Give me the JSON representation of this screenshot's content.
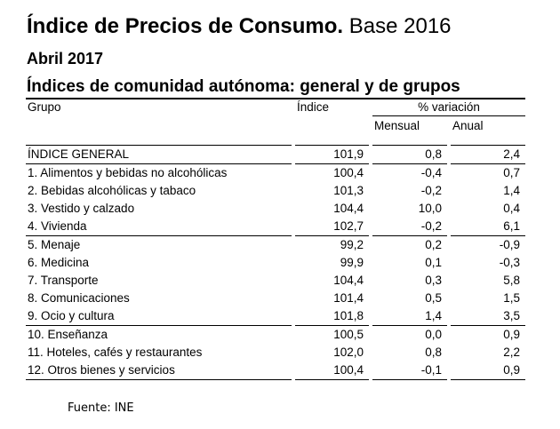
{
  "title": {
    "main": "Índice de Precios de Consumo.",
    "base": " Base 2016"
  },
  "subtitle": "Abril 2017",
  "heading": "Índices de comunidad autónoma: general y de grupos",
  "table": {
    "header": {
      "grupo": "Grupo",
      "indice": "Índice",
      "variacion": "% variación",
      "mensual": "Mensual",
      "anual": "Anual"
    },
    "rows": [
      {
        "name": "ÍNDICE GENERAL",
        "indice": "101,9",
        "mensual": "0,8",
        "anual": "2,4"
      },
      {
        "name": "1. Alimentos y bebidas no alcohólicas",
        "indice": "100,4",
        "mensual": "-0,4",
        "anual": "0,7"
      },
      {
        "name": "2. Bebidas alcohólicas y tabaco",
        "indice": "101,3",
        "mensual": "-0,2",
        "anual": "1,4"
      },
      {
        "name": "3. Vestido y calzado",
        "indice": "104,4",
        "mensual": "10,0",
        "anual": "0,4"
      },
      {
        "name": "4. Vivienda",
        "indice": "102,7",
        "mensual": "-0,2",
        "anual": "6,1"
      },
      {
        "name": "5. Menaje",
        "indice": "99,2",
        "mensual": "0,2",
        "anual": "-0,9"
      },
      {
        "name": "6. Medicina",
        "indice": "99,9",
        "mensual": "0,1",
        "anual": "-0,3"
      },
      {
        "name": "7. Transporte",
        "indice": "104,4",
        "mensual": "0,3",
        "anual": "5,8"
      },
      {
        "name": "8. Comunicaciones",
        "indice": "101,4",
        "mensual": "0,5",
        "anual": "1,5"
      },
      {
        "name": "9. Ocio y cultura",
        "indice": "101,8",
        "mensual": "1,4",
        "anual": "3,5"
      },
      {
        "name": "10. Enseñanza",
        "indice": "100,5",
        "mensual": "0,0",
        "anual": "0,9"
      },
      {
        "name": "11. Hoteles, cafés y restaurantes",
        "indice": "102,0",
        "mensual": "0,8",
        "anual": "2,2"
      },
      {
        "name": "12. Otros bienes y servicios",
        "indice": "100,4",
        "mensual": "-0,1",
        "anual": "0,9"
      }
    ]
  },
  "source": "Fuente: INE"
}
